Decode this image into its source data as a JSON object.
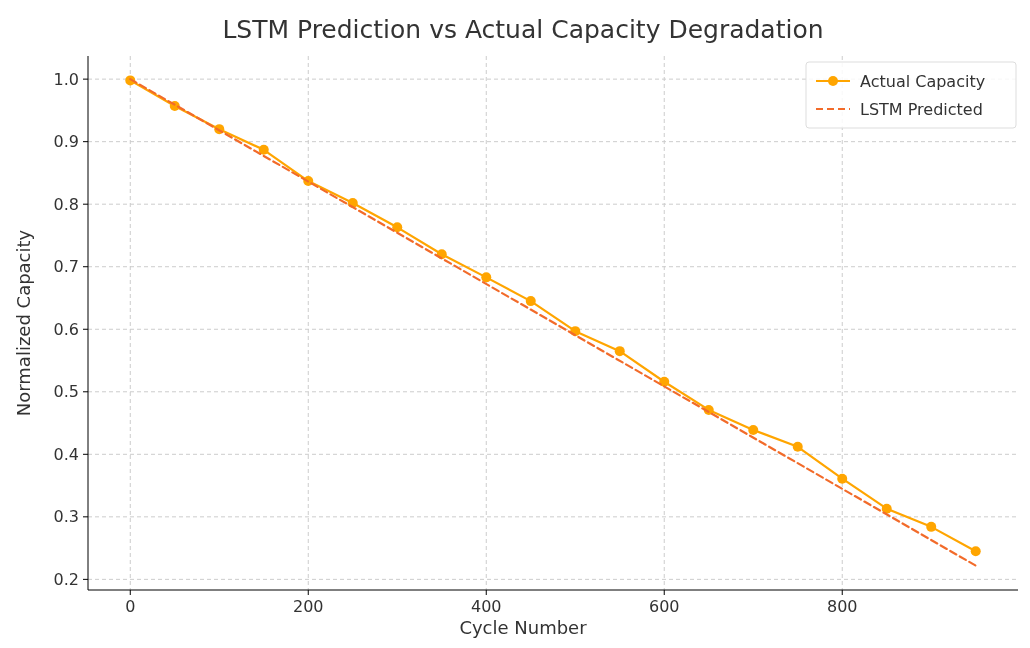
{
  "chart_data": {
    "type": "line",
    "title": "LSTM Prediction vs Actual Capacity Degradation",
    "xlabel": "Cycle Number",
    "ylabel": "Normalized Capacity",
    "x": [
      0,
      50,
      100,
      150,
      200,
      250,
      300,
      350,
      400,
      450,
      500,
      550,
      600,
      650,
      700,
      750,
      800,
      850,
      900,
      950
    ],
    "series": [
      {
        "name": "Actual Capacity",
        "color": "#ffa500",
        "marker": "circle",
        "line_style": "solid",
        "values": [
          0.998,
          0.957,
          0.92,
          0.887,
          0.837,
          0.802,
          0.763,
          0.72,
          0.683,
          0.645,
          0.597,
          0.565,
          0.516,
          0.471,
          0.439,
          0.412,
          0.361,
          0.313,
          0.284,
          0.245
        ]
      },
      {
        "name": "LSTM Predicted",
        "color": "#f26b2a",
        "marker": "none",
        "line_style": "dashed",
        "x": [
          0,
          950
        ],
        "values": [
          1.0,
          0.222
        ]
      }
    ],
    "xlim": [
      -47.5,
      997.5
    ],
    "ylim": [
      0.183,
      1.037
    ],
    "xticks": [
      0,
      200,
      400,
      600,
      800
    ],
    "yticks": [
      {
        "value": 0.2,
        "label": "0.2"
      },
      {
        "value": 0.3,
        "label": "0.3"
      },
      {
        "value": 0.4,
        "label": "0.4"
      },
      {
        "value": 0.5,
        "label": "0.5"
      },
      {
        "value": 0.6,
        "label": "0.6"
      },
      {
        "value": 0.7,
        "label": "0.7"
      },
      {
        "value": 0.8,
        "label": "0.8"
      },
      {
        "value": 0.9,
        "label": "0.9"
      },
      {
        "value": 1.0,
        "label": "1.0"
      }
    ],
    "grid": true,
    "legend": "top right"
  }
}
